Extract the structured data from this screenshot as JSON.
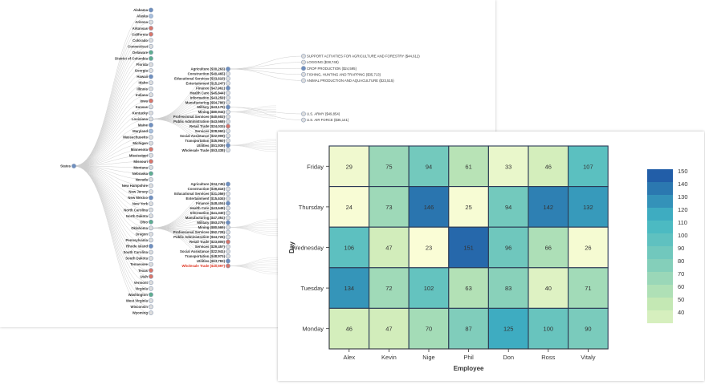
{
  "tree": {
    "root_label": "States",
    "states": [
      {
        "name": "Alabama",
        "color": "#6f8fbf"
      },
      {
        "name": "Alaska",
        "color": "#a9c0dd"
      },
      {
        "name": "Arizona",
        "color": "#dddddd"
      },
      {
        "name": "Arkansas",
        "color": "#d9776b"
      },
      {
        "name": "California",
        "color": "#d9776b"
      },
      {
        "name": "Colorado",
        "color": "#dddddd"
      },
      {
        "name": "Connecticut",
        "color": "#dddddd"
      },
      {
        "name": "Delaware",
        "color": "#5fae8f"
      },
      {
        "name": "District of Columbia",
        "color": "#5fae8f"
      },
      {
        "name": "Florida",
        "color": "#dddddd"
      },
      {
        "name": "Georgia",
        "color": "#dddddd"
      },
      {
        "name": "Hawaii",
        "color": "#6f8fbf"
      },
      {
        "name": "Idaho",
        "color": "#dddddd"
      },
      {
        "name": "Illinois",
        "color": "#dddddd"
      },
      {
        "name": "Indiana",
        "color": "#dddddd"
      },
      {
        "name": "Iowa",
        "color": "#d9776b"
      },
      {
        "name": "Kansas",
        "color": "#dddddd"
      },
      {
        "name": "Kentucky",
        "color": "#dddddd"
      },
      {
        "name": "Louisiana",
        "color": "#dddddd"
      },
      {
        "name": "Maine",
        "color": "#6f8fbf"
      },
      {
        "name": "Maryland",
        "color": "#a9c0dd"
      },
      {
        "name": "Massachusetts",
        "color": "#dddddd"
      },
      {
        "name": "Michigan",
        "color": "#dddddd"
      },
      {
        "name": "Minnesota",
        "color": "#d9776b"
      },
      {
        "name": "Mississippi",
        "color": "#dddddd"
      },
      {
        "name": "Missouri",
        "color": "#d9776b"
      },
      {
        "name": "Montana",
        "color": "#dddddd"
      },
      {
        "name": "Nebraska",
        "color": "#5fae8f"
      },
      {
        "name": "Nevada",
        "color": "#dddddd"
      },
      {
        "name": "New Hampshire",
        "color": "#dddddd"
      },
      {
        "name": "New Jersey",
        "color": "#dddddd"
      },
      {
        "name": "New Mexico",
        "color": "#6f8fbf"
      },
      {
        "name": "New York",
        "color": "#dddddd"
      },
      {
        "name": "North Carolina",
        "color": "#dddddd"
      },
      {
        "name": "North Dakota",
        "color": "#dddddd"
      },
      {
        "name": "Ohio",
        "color": "#5fae8f"
      },
      {
        "name": "Oklahoma",
        "color": "#dddddd"
      },
      {
        "name": "Oregon",
        "color": "#dddddd"
      },
      {
        "name": "Pennsylvania",
        "color": "#dddddd"
      },
      {
        "name": "Rhode Island",
        "color": "#6f8fbf"
      },
      {
        "name": "South Carolina",
        "color": "#dddddd"
      },
      {
        "name": "South Dakota",
        "color": "#dddddd"
      },
      {
        "name": "Tennessee",
        "color": "#dddddd"
      },
      {
        "name": "Texas",
        "color": "#d9776b"
      },
      {
        "name": "Utah",
        "color": "#d9776b"
      },
      {
        "name": "Vermont",
        "color": "#dddddd"
      },
      {
        "name": "Virginia",
        "color": "#dddddd"
      },
      {
        "name": "Washington",
        "color": "#5fae8f"
      },
      {
        "name": "West Virginia",
        "color": "#dddddd"
      },
      {
        "name": "Wisconsin",
        "color": "#dddddd"
      },
      {
        "name": "Wyoming",
        "color": "#dddddd"
      }
    ],
    "group1": [
      {
        "name": "Agriculture ($30,263)",
        "color": "#6f8fbf"
      },
      {
        "name": "Construction ($40,465)",
        "color": "#dddddd"
      },
      {
        "name": "Educational Services ($33,610)",
        "color": "#dddddd"
      },
      {
        "name": "Entertainment ($15,247)",
        "color": "#dddddd"
      },
      {
        "name": "Finance ($47,961)",
        "color": "#6f8fbf"
      },
      {
        "name": "Health Care ($45,844)",
        "color": "#dddddd"
      },
      {
        "name": "Information ($43,259)",
        "color": "#dddddd"
      },
      {
        "name": "Manufacturing ($54,786)",
        "color": "#dddddd"
      },
      {
        "name": "Military ($43,179)",
        "color": "#6f8fbf"
      },
      {
        "name": "Mining ($80,944)",
        "color": "#dddddd"
      },
      {
        "name": "Professional Services ($40,602)",
        "color": "#dddddd"
      },
      {
        "name": "Public Administration ($43,568)",
        "color": "#dddddd"
      },
      {
        "name": "Retail Trade ($24,033)",
        "color": "#d9776b"
      },
      {
        "name": "Services ($28,960)",
        "color": "#dddddd"
      },
      {
        "name": "Social Assistance ($22,909)",
        "color": "#dddddd"
      },
      {
        "name": "Transportation ($45,960)",
        "color": "#dddddd"
      },
      {
        "name": "Utilities ($51,939)",
        "color": "#6f8fbf"
      },
      {
        "name": "Wholesale Trade ($53,438)",
        "color": "#dddddd"
      }
    ],
    "group2": [
      {
        "name": "Agriculture ($34,745)",
        "color": "#6f8fbf"
      },
      {
        "name": "Construction ($39,816)",
        "color": "#dddddd"
      },
      {
        "name": "Educational Services ($31,056)",
        "color": "#dddddd"
      },
      {
        "name": "Entertainment ($15,634)",
        "color": "#dddddd"
      },
      {
        "name": "Finance ($48,404)",
        "color": "#6f8fbf"
      },
      {
        "name": "Health Care ($43,648)",
        "color": "#dddddd"
      },
      {
        "name": "Information ($41,340)",
        "color": "#dddddd"
      },
      {
        "name": "Manufacturing ($47,351)",
        "color": "#dddddd"
      },
      {
        "name": "Military ($53,275)",
        "color": "#6f8fbf"
      },
      {
        "name": "Mining ($80,569)",
        "color": "#dddddd"
      },
      {
        "name": "Professional Services ($52,728)",
        "color": "#dddddd"
      },
      {
        "name": "Public Administration ($44,726)",
        "color": "#dddddd"
      },
      {
        "name": "Retail Trade ($23,805)",
        "color": "#d9776b"
      },
      {
        "name": "Services ($29,457)",
        "color": "#dddddd"
      },
      {
        "name": "Social Assistance ($22,941)",
        "color": "#dddddd"
      },
      {
        "name": "Transportation ($48,973)",
        "color": "#dddddd"
      },
      {
        "name": "Utilities ($63,783)",
        "color": "#6f8fbf"
      },
      {
        "name": "Wholesale Trade ($40,597)",
        "color": "#d9776b",
        "highlight": true
      }
    ],
    "agri_children": [
      {
        "name": "SUPPORT ACTIVITIES FOR AGRICULTURE AND FORESTRY ($44,612)",
        "color": "#dddddd"
      },
      {
        "name": "LOGGING ($38,748)",
        "color": "#dddddd"
      },
      {
        "name": "CROP PRODUCTION ($24,595)",
        "color": "#6f8fbf"
      },
      {
        "name": "FISHING, HUNTING AND TRAPPING ($35,713)",
        "color": "#dddddd"
      },
      {
        "name": "ANIMAL PRODUCTION AND AQUACULTURE ($23,515)",
        "color": "#dddddd"
      }
    ],
    "military_children": [
      {
        "name": "U.S. ARMY ($49,854)",
        "color": "#dddddd"
      },
      {
        "name": "U.S. AIR FORCE ($35,141)",
        "color": "#dddddd"
      }
    ],
    "highlight_color": "#e0331f"
  },
  "chart_data": {
    "type": "heatmap",
    "x": [
      "Alex",
      "Kevin",
      "Nige",
      "Phil",
      "Don",
      "Ross",
      "Vitaly"
    ],
    "y": [
      "Friday",
      "Thursday",
      "Wednesday",
      "Tuesday",
      "Monday"
    ],
    "values": [
      [
        29,
        75,
        94,
        61,
        33,
        46,
        107
      ],
      [
        24,
        73,
        146,
        25,
        94,
        142,
        132
      ],
      [
        106,
        47,
        23,
        151,
        96,
        66,
        26
      ],
      [
        134,
        72,
        102,
        63,
        83,
        40,
        71
      ],
      [
        46,
        47,
        70,
        87,
        125,
        100,
        90
      ]
    ],
    "xlabel": "Employee",
    "ylabel": "Day",
    "legend_ticks": [
      150,
      140,
      130,
      120,
      110,
      100,
      90,
      80,
      70,
      60,
      50,
      40
    ],
    "range": [
      20,
      155
    ]
  }
}
